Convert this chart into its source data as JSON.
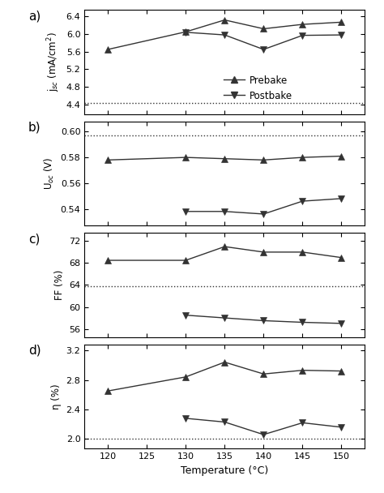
{
  "jsc_prebake_x": [
    120,
    130,
    135,
    140,
    145,
    150
  ],
  "jsc_prebake": [
    5.65,
    6.05,
    6.32,
    6.12,
    6.22,
    6.27
  ],
  "jsc_postbake_x": [
    130,
    135,
    140,
    145,
    150
  ],
  "jsc_postbake": [
    6.04,
    5.98,
    5.65,
    5.97,
    5.98
  ],
  "jsc_dotted": 4.43,
  "jsc_ylim": [
    4.18,
    6.55
  ],
  "jsc_yticks": [
    4.4,
    4.8,
    5.2,
    5.6,
    6.0,
    6.4
  ],
  "uoc_prebake_x": [
    120,
    130,
    135,
    140,
    145,
    150
  ],
  "uoc_prebake": [
    0.578,
    0.58,
    0.579,
    0.578,
    0.58,
    0.581
  ],
  "uoc_postbake_x": [
    130,
    135,
    140,
    145,
    150
  ],
  "uoc_postbake": [
    0.538,
    0.538,
    0.536,
    0.546,
    0.548
  ],
  "uoc_dotted": 0.597,
  "uoc_ylim": [
    0.527,
    0.608
  ],
  "uoc_yticks": [
    0.54,
    0.56,
    0.58,
    0.6
  ],
  "ff_prebake_x": [
    120,
    130,
    135,
    140,
    145,
    150
  ],
  "ff_prebake": [
    68.5,
    68.5,
    71.0,
    70.0,
    70.0,
    69.0
  ],
  "ff_postbake_x": [
    130,
    135,
    140,
    145,
    150
  ],
  "ff_postbake": [
    58.5,
    58.0,
    57.5,
    57.2,
    57.0
  ],
  "ff_dotted": 63.8,
  "ff_ylim": [
    54.5,
    73.5
  ],
  "ff_yticks": [
    56,
    60,
    64,
    68,
    72
  ],
  "eta_prebake_x": [
    120,
    130,
    135,
    140,
    145,
    150
  ],
  "eta_prebake": [
    2.65,
    2.84,
    3.04,
    2.88,
    2.93,
    2.92
  ],
  "eta_postbake_x": [
    130,
    135,
    140,
    145,
    150
  ],
  "eta_postbake": [
    2.28,
    2.23,
    2.06,
    2.22,
    2.16
  ],
  "eta_dotted": 2.0,
  "eta_ylim": [
    1.87,
    3.28
  ],
  "eta_yticks": [
    2.0,
    2.4,
    2.8,
    3.2
  ],
  "xlim": [
    117,
    153
  ],
  "xticks": [
    120,
    125,
    130,
    135,
    140,
    145,
    150
  ],
  "xlabel": "Temperature (°C)",
  "panel_labels": [
    "a)",
    "b)",
    "c)",
    "d)"
  ],
  "ylabels": [
    "j$_{sc}$ (mA/cm$^2$)",
    "U$_{oc}$ (V)",
    "FF (%)",
    "η (%)"
  ],
  "line_color": "#333333",
  "marker_size": 5.5,
  "line_width": 1.0,
  "dotted_lw": 1.0
}
